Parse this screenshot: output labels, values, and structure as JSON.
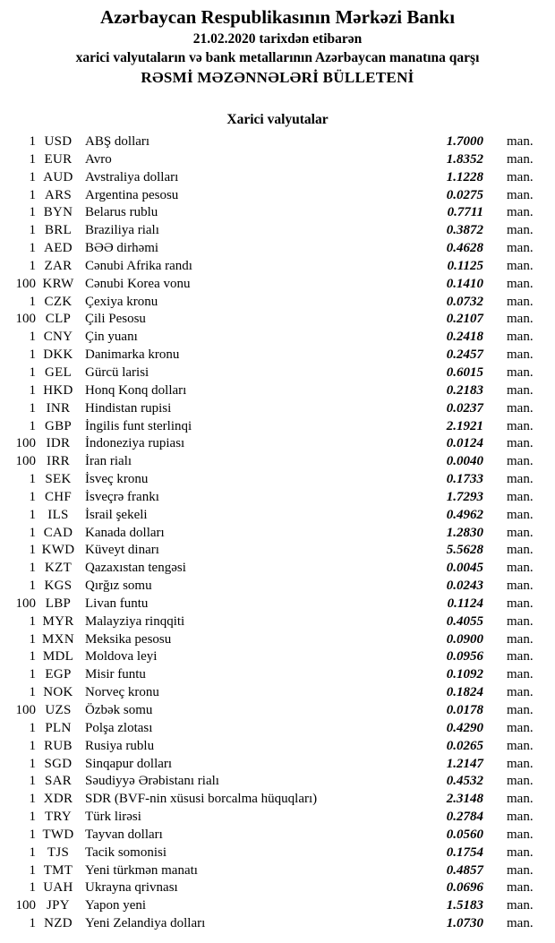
{
  "header": {
    "bank_name": "Azərbaycan Respublikasının Mərkəzi Bankı",
    "date_line": "21.02.2020 tarixdən etibarən",
    "subtitle": "xarici valyutaların və bank metallarının Azərbaycan manatına qarşı",
    "title": "RƏSMİ MƏZƏNNƏLƏRİ BÜLLETENİ"
  },
  "section": {
    "title": "Xarici valyutalar"
  },
  "unit_label": "man.",
  "rates": [
    {
      "qty": "1",
      "code": "USD",
      "name": "ABŞ dolları",
      "rate": "1.7000"
    },
    {
      "qty": "1",
      "code": "EUR",
      "name": "Avro",
      "rate": "1.8352"
    },
    {
      "qty": "1",
      "code": "AUD",
      "name": "Avstraliya dolları",
      "rate": "1.1228"
    },
    {
      "qty": "1",
      "code": "ARS",
      "name": "Argentina pesosu",
      "rate": "0.0275"
    },
    {
      "qty": "1",
      "code": "BYN",
      "name": "Belarus rublu",
      "rate": "0.7711"
    },
    {
      "qty": "1",
      "code": "BRL",
      "name": "Braziliya rialı",
      "rate": "0.3872"
    },
    {
      "qty": "1",
      "code": "AED",
      "name": "BƏƏ dirhəmi",
      "rate": "0.4628"
    },
    {
      "qty": "1",
      "code": "ZAR",
      "name": "Cənubi Afrika randı",
      "rate": "0.1125"
    },
    {
      "qty": "100",
      "code": "KRW",
      "name": "Cənubi Korea vonu",
      "rate": "0.1410"
    },
    {
      "qty": "1",
      "code": "CZK",
      "name": "Çexiya kronu",
      "rate": "0.0732"
    },
    {
      "qty": "100",
      "code": "CLP",
      "name": "Çili Pesosu",
      "rate": "0.2107"
    },
    {
      "qty": "1",
      "code": "CNY",
      "name": "Çin yuanı",
      "rate": "0.2418"
    },
    {
      "qty": "1",
      "code": "DKK",
      "name": "Danimarka kronu",
      "rate": "0.2457"
    },
    {
      "qty": "1",
      "code": "GEL",
      "name": "Gürcü larisi",
      "rate": "0.6015"
    },
    {
      "qty": "1",
      "code": "HKD",
      "name": "Honq Konq dolları",
      "rate": "0.2183"
    },
    {
      "qty": "1",
      "code": "INR",
      "name": "Hindistan rupisi",
      "rate": "0.0237"
    },
    {
      "qty": "1",
      "code": "GBP",
      "name": "İngilis funt sterlinqi",
      "rate": "2.1921"
    },
    {
      "qty": "100",
      "code": "IDR",
      "name": "İndoneziya rupiası",
      "rate": "0.0124"
    },
    {
      "qty": "100",
      "code": "IRR",
      "name": "İran rialı",
      "rate": "0.0040"
    },
    {
      "qty": "1",
      "code": "SEK",
      "name": "İsveç kronu",
      "rate": "0.1733"
    },
    {
      "qty": "1",
      "code": "CHF",
      "name": "İsveçrə frankı",
      "rate": "1.7293"
    },
    {
      "qty": "1",
      "code": "ILS",
      "name": "İsrail şekeli",
      "rate": "0.4962"
    },
    {
      "qty": "1",
      "code": "CAD",
      "name": "Kanada dolları",
      "rate": "1.2830"
    },
    {
      "qty": "1",
      "code": "KWD",
      "name": "Küveyt dinarı",
      "rate": "5.5628"
    },
    {
      "qty": "1",
      "code": "KZT",
      "name": "Qazaxıstan tengəsi",
      "rate": "0.0045"
    },
    {
      "qty": "1",
      "code": "KGS",
      "name": "Qırğız somu",
      "rate": "0.0243"
    },
    {
      "qty": "100",
      "code": "LBP",
      "name": "Livan funtu",
      "rate": "0.1124"
    },
    {
      "qty": "1",
      "code": "MYR",
      "name": "Malayziya rinqqiti",
      "rate": "0.4055"
    },
    {
      "qty": "1",
      "code": "MXN",
      "name": "Meksika pesosu",
      "rate": "0.0900"
    },
    {
      "qty": "1",
      "code": "MDL",
      "name": "Moldova leyi",
      "rate": "0.0956"
    },
    {
      "qty": "1",
      "code": "EGP",
      "name": "Misir funtu",
      "rate": "0.1092"
    },
    {
      "qty": "1",
      "code": "NOK",
      "name": "Norveç kronu",
      "rate": "0.1824"
    },
    {
      "qty": "100",
      "code": "UZS",
      "name": "Özbək somu",
      "rate": "0.0178"
    },
    {
      "qty": "1",
      "code": "PLN",
      "name": "Polşa zlotası",
      "rate": "0.4290"
    },
    {
      "qty": "1",
      "code": "RUB",
      "name": "Rusiya rublu",
      "rate": "0.0265"
    },
    {
      "qty": "1",
      "code": "SGD",
      "name": "Sinqapur dolları",
      "rate": "1.2147"
    },
    {
      "qty": "1",
      "code": "SAR",
      "name": "Səudiyyə Ərəbistanı rialı",
      "rate": "0.4532"
    },
    {
      "qty": "1",
      "code": "XDR",
      "name": "SDR (BVF-nin xüsusi borcalma hüquqları)",
      "rate": "2.3148"
    },
    {
      "qty": "1",
      "code": "TRY",
      "name": "Türk lirəsi",
      "rate": "0.2784"
    },
    {
      "qty": "1",
      "code": "TWD",
      "name": "Tayvan dolları",
      "rate": "0.0560"
    },
    {
      "qty": "1",
      "code": "TJS",
      "name": "Tacik somonisi",
      "rate": "0.1754"
    },
    {
      "qty": "1",
      "code": "TMT",
      "name": "Yeni türkmən manatı",
      "rate": "0.4857"
    },
    {
      "qty": "1",
      "code": "UAH",
      "name": "Ukrayna qrivnası",
      "rate": "0.0696"
    },
    {
      "qty": "100",
      "code": "JPY",
      "name": "Yapon yeni",
      "rate": "1.5183"
    },
    {
      "qty": "1",
      "code": "NZD",
      "name": "Yeni Zelandiya dolları",
      "rate": "1.0730"
    }
  ]
}
